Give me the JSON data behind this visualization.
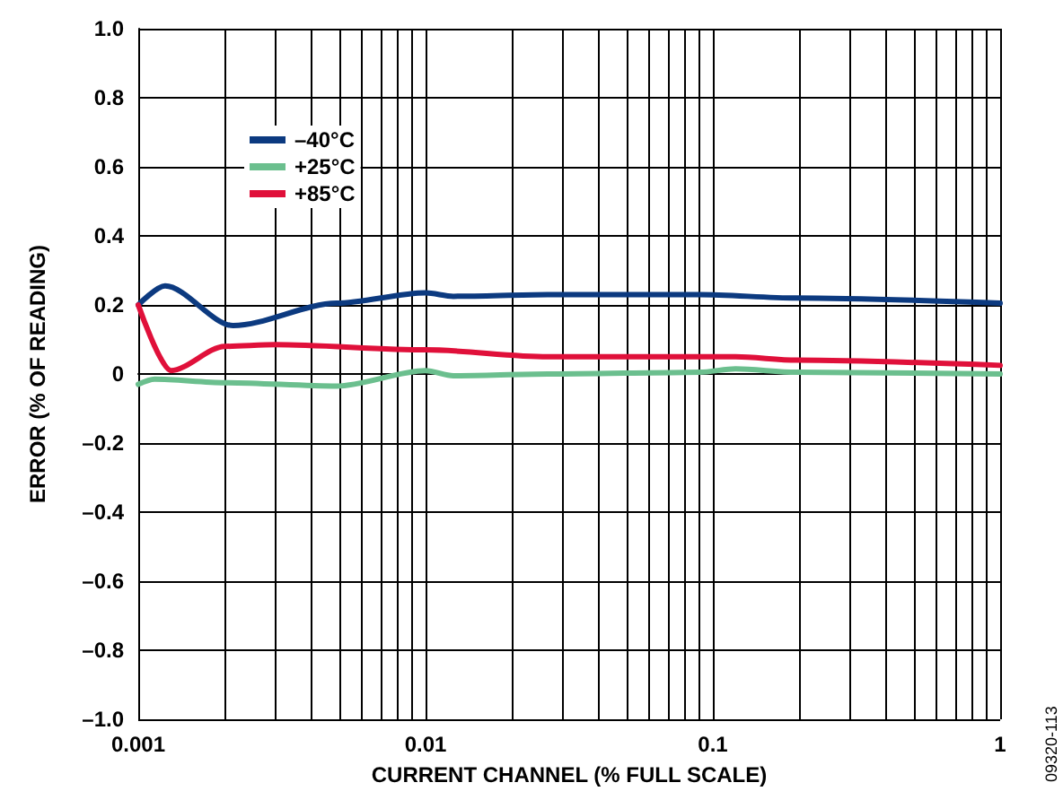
{
  "chart_data": {
    "type": "line",
    "xlabel": "CURRENT CHANNEL (% FULL SCALE)",
    "ylabel": "ERROR (% OF READING)",
    "annotations": [
      "09320-113"
    ],
    "log": "x",
    "grid": true,
    "legend": "top left",
    "marker": "none",
    "line_style": "solid",
    "xlim": [
      0.001,
      1
    ],
    "xticks": [
      0.001,
      0.01,
      0.1,
      1
    ],
    "ylim": [
      -1,
      1
    ],
    "yticks": [
      {
        "value": -1,
        "label": "–1.0"
      },
      {
        "value": -0.8,
        "label": "–0.8"
      },
      {
        "value": -0.6,
        "label": "–0.6"
      },
      {
        "value": -0.4,
        "label": "–0.4"
      },
      {
        "value": -0.2,
        "label": "–0.2"
      },
      0,
      {
        "value": 0.2,
        "label": "0.2"
      },
      {
        "value": 0.4,
        "label": "0.4"
      },
      {
        "value": 0.6,
        "label": "0.6"
      },
      {
        "value": 0.8,
        "label": "0.8"
      },
      {
        "value": 1,
        "label": "1.0"
      }
    ],
    "series": [
      {
        "name": "–40°C",
        "color": "#0c3a80",
        "x": [
          0.001,
          0.00124,
          0.00214,
          0.0049,
          0.01,
          0.0125,
          0.0266,
          0.09,
          0.195,
          1
        ],
        "values": [
          0.2,
          0.255,
          0.14,
          0.205,
          0.235,
          0.225,
          0.23,
          0.23,
          0.22,
          0.205
        ]
      },
      {
        "name": "+25°C",
        "color": "#6bbf8e",
        "x": [
          0.001,
          0.00114,
          0.002,
          0.0049,
          0.01,
          0.0125,
          0.0266,
          0.09,
          0.12,
          0.195,
          1
        ],
        "values": [
          -0.03,
          -0.015,
          -0.025,
          -0.035,
          0.01,
          -0.005,
          0,
          0.005,
          0.015,
          0.005,
          0
        ]
      },
      {
        "name": "+85°C",
        "color": "#e0103a",
        "x": [
          0.001,
          0.0013,
          0.002,
          0.003,
          0.01,
          0.0266,
          0.12,
          0.195,
          1
        ],
        "values": [
          0.2,
          0.01,
          0.08,
          0.085,
          0.07,
          0.05,
          0.05,
          0.04,
          0.025
        ]
      }
    ]
  }
}
